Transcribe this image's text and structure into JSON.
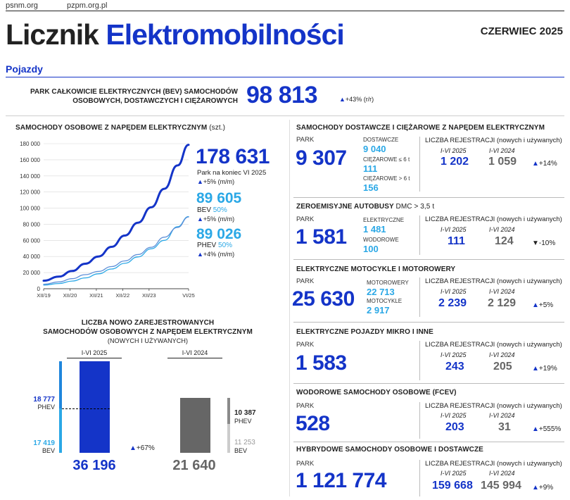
{
  "header": {
    "link1": "psnm.org",
    "link2": "pzpm.org.pl",
    "title_a": "Licznik",
    "title_b": "Elektromobilności",
    "date": "CZERWIEC 2025",
    "section": "Pojazdy"
  },
  "park_total": {
    "label1": "PARK CAŁKOWICIE ELEKTRYCZNYCH (BEV) SAMOCHODÓW",
    "label2": "OSOBOWYCH, DOSTAWCZYCH I CIĘŻAROWYCH",
    "value": "98 813",
    "change": "+43% (r/r)"
  },
  "cars": {
    "title": "SAMOCHODY OSOBOWE Z NAPĘDEM ELEKTRYCZNYM",
    "unit": "(szt.)",
    "total": "178 631",
    "total_note": "Park na koniec VI 2025",
    "total_change": "+5% (m/m)",
    "bev_value": "89 605",
    "bev_label": "BEV",
    "bev_share": "50%",
    "bev_change": "+5% (m/m)",
    "phev_value": "89 026",
    "phev_label": "PHEV",
    "phev_share": "50%",
    "phev_change": "+4% (m/m)"
  },
  "chart_data": [
    {
      "type": "line",
      "title": "SAMOCHODY OSOBOWE Z NAPĘDEM ELEKTRYCZNYM",
      "ylim": [
        0,
        180000
      ],
      "yticks": [
        0,
        20000,
        40000,
        60000,
        80000,
        100000,
        120000,
        140000,
        160000,
        180000
      ],
      "ytick_labels": [
        "0",
        "20 000",
        "40 000",
        "60 000",
        "80 000",
        "100 000",
        "120 000",
        "140 000",
        "160 000",
        "180 000"
      ],
      "x": [
        2019.92,
        2020.5,
        2021.0,
        2021.5,
        2022.0,
        2022.5,
        2023.0,
        2023.5,
        2024.0,
        2024.5,
        2025.0,
        2025.42
      ],
      "xlim": [
        2019.92,
        2025.42
      ],
      "xtick_positions": [
        2019.92,
        2020.92,
        2021.92,
        2022.92,
        2023.92,
        2025.42
      ],
      "xtick_labels": [
        "XII/19",
        "XII/20",
        "XII/21",
        "XII/22",
        "XII/23",
        "VI/25"
      ],
      "series": [
        {
          "values": [
            10000,
            15000,
            22000,
            31000,
            40000,
            52000,
            66000,
            82000,
            101000,
            124000,
            153000,
            178631
          ]
        },
        {
          "values": [
            4500,
            6500,
            9500,
            13500,
            18500,
            24500,
            31500,
            39500,
            49500,
            60000,
            77000,
            89605
          ]
        },
        {
          "values": [
            5500,
            8500,
            12500,
            17500,
            21500,
            27500,
            34500,
            42500,
            51500,
            64000,
            76000,
            89026
          ]
        }
      ]
    },
    {
      "type": "bar",
      "title": "LICZBA NOWO ZAREJESTROWANYCH SAMOCHODÓW OSOBOWYCH Z NAPĘDEM ELEKTRYCZNYM",
      "categories": [
        "I-VI 2025",
        "I-VI 2024"
      ],
      "series": [
        {
          "name": "BEV",
          "values": [
            17419,
            11253
          ]
        },
        {
          "name": "PHEV",
          "values": [
            18777,
            10387
          ]
        }
      ],
      "totals": [
        36196,
        21640
      ]
    }
  ],
  "newreg": {
    "title1": "LICZBA NOWO ZAREJESTROWANYCH",
    "title2": "SAMOCHODÓW OSOBOWYCH Z NAPĘDEM ELEKTRYCZNYM",
    "title3": "(NOWYCH I UŻYWANYCH)",
    "period1": "I-VI 2025",
    "period2": "I-VI 2024",
    "phev_2025": "18 777",
    "bev_2025": "17 419",
    "phev_2024": "10 387",
    "bev_2024": "11 253",
    "phev": "PHEV",
    "bev": "BEV",
    "total_2025": "36 196",
    "total_2024": "21 640",
    "change": "+67%"
  },
  "reg_labels": {
    "head": "LICZBA REJESTRACJI (nowych i używanych)",
    "p1": "I-VI 2025",
    "p2": "I-VI 2024",
    "park": "PARK"
  },
  "vans": {
    "title": "SAMOCHODY DOSTAWCZE I CIĘŻAROWE Z NAPĘDEM ELEKTRYCZNYM",
    "park": "9 307",
    "s1_label": "DOSTAWCZE",
    "s1_value": "9 040",
    "s2_label": "CIĘŻAROWE ≤ 6 t",
    "s2_value": "111",
    "s3_label": "CIĘŻAROWE > 6 t",
    "s3_value": "156",
    "r1": "1 202",
    "r2": "1 059",
    "change": "+14%"
  },
  "buses": {
    "title": "ZEROEMISYJNE AUTOBUSY",
    "title_suffix": "DMC > 3,5 t",
    "park": "1 581",
    "s1_label": "ELEKTRYCZNE",
    "s1_value": "1 481",
    "s2_label": "WODOROWE",
    "s2_value": "100",
    "r1": "111",
    "r2": "124",
    "change": "-10%"
  },
  "moto": {
    "title": "ELEKTRYCZNE MOTOCYKLE I MOTOROWERY",
    "park": "25 630",
    "s1_label": "MOTOROWERY",
    "s1_value": "22 713",
    "s2_label": "MOTOCYKLE",
    "s2_value": "2 917",
    "r1": "2 239",
    "r2": "2 129",
    "change": "+5%"
  },
  "micro": {
    "title": "ELEKTRYCZNE POJAZDY MIKRO I INNE",
    "park": "1 583",
    "r1": "243",
    "r2": "205",
    "change": "+19%"
  },
  "fcev": {
    "title": "WODOROWE SAMOCHODY OSOBOWE (FCEV)",
    "park": "528",
    "r1": "203",
    "r2": "31",
    "change": "+555%"
  },
  "hybrid": {
    "title": "HYBRYDOWE SAMOCHODY OSOBOWE I DOSTAWCZE",
    "park": "1 121 774",
    "r1": "159 668",
    "r2": "145 994",
    "change": "+9%"
  },
  "colors": {
    "dark_blue": "#1434c8",
    "light_blue": "#2ba8e6",
    "gray": "#666666",
    "light_gray": "#bbbbbb"
  }
}
